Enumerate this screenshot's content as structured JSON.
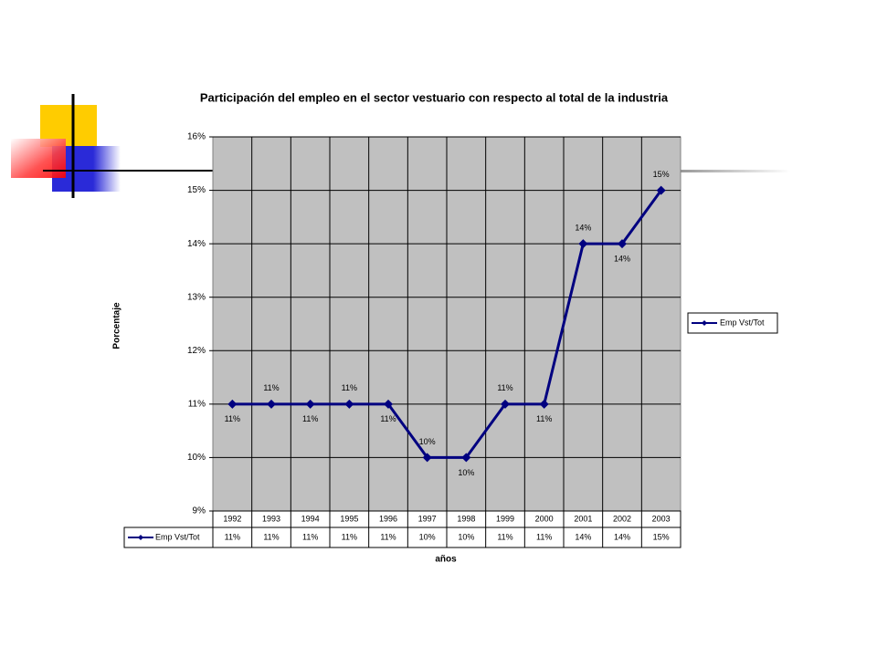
{
  "chart_data": {
    "type": "line",
    "title": "Participación del empleo en el sector vestuario con respecto al total de la industria",
    "x_label": "años",
    "y_label": "Porcentaje",
    "categories": [
      "1992",
      "1993",
      "1994",
      "1995",
      "1996",
      "1997",
      "1998",
      "1999",
      "2000",
      "2001",
      "2002",
      "2003"
    ],
    "series": [
      {
        "name": "Emp Vst/Tot",
        "color": "#000080",
        "values": [
          11,
          11,
          11,
          11,
          11,
          10,
          10,
          11,
          11,
          14,
          14,
          15
        ],
        "value_labels": [
          "11%",
          "11%",
          "11%",
          "11%",
          "11%",
          "10%",
          "10%",
          "11%",
          "11%",
          "14%",
          "14%",
          "15%"
        ]
      }
    ],
    "ylim": [
      9,
      16
    ],
    "yticks": [
      {
        "value": 9,
        "label": "9%"
      },
      {
        "value": 10,
        "label": "10%"
      },
      {
        "value": 11,
        "label": "11%"
      },
      {
        "value": 12,
        "label": "12%"
      },
      {
        "value": 13,
        "label": "13%"
      },
      {
        "value": 14,
        "label": "14%"
      },
      {
        "value": 15,
        "label": "15%"
      },
      {
        "value": 16,
        "label": "16%"
      }
    ],
    "grid": true,
    "legend": "right"
  }
}
